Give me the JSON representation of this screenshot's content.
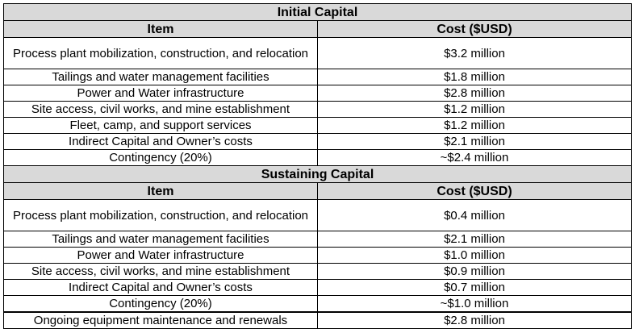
{
  "initial": {
    "title": "Initial Capital",
    "col_item": "Item",
    "col_cost": "Cost ($USD)",
    "rows": [
      {
        "item": "Process plant mobilization, construction, and relocation",
        "cost": "$3.2 million"
      },
      {
        "item": "Tailings and water management facilities",
        "cost": "$1.8 million"
      },
      {
        "item": "Power and Water infrastructure",
        "cost": "$2.8 million"
      },
      {
        "item": "Site access, civil works, and mine establishment",
        "cost": "$1.2 million"
      },
      {
        "item": "Fleet, camp, and support services",
        "cost": "$1.2 million"
      },
      {
        "item": "Indirect Capital and Owner’s costs",
        "cost": "$2.1 million"
      },
      {
        "item": "Contingency (20%)",
        "cost": "~$2.4 million"
      }
    ]
  },
  "sustaining": {
    "title": "Sustaining Capital",
    "col_item": "Item",
    "col_cost": "Cost ($USD)",
    "rows": [
      {
        "item": "Process plant mobilization, construction, and relocation",
        "cost": "$0.4 million"
      },
      {
        "item": "Tailings and water management facilities",
        "cost": "$2.1 million"
      },
      {
        "item": "Power and Water infrastructure",
        "cost": "$1.0 million"
      },
      {
        "item": "Site access, civil works, and mine establishment",
        "cost": "$0.9 million"
      },
      {
        "item": "Indirect Capital and Owner’s costs",
        "cost": "$0.7 million"
      },
      {
        "item": "Contingency (20%)",
        "cost": "~$1.0 million"
      },
      {
        "item": "Ongoing equipment maintenance and renewals",
        "cost": "$2.8 million"
      }
    ]
  }
}
